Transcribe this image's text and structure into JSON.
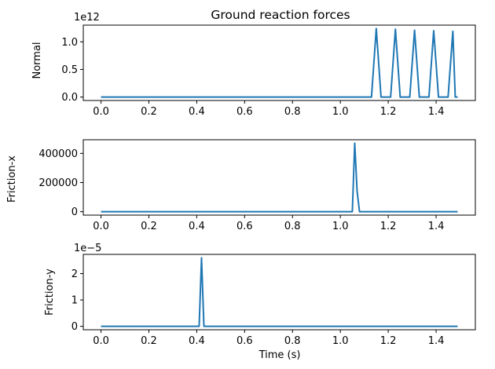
{
  "figure": {
    "title": "Ground reaction forces",
    "xlabel": "Time (s)"
  },
  "colors": {
    "line": "#1f77b4",
    "axes": "#000000",
    "background": "#ffffff"
  },
  "chart_data": [
    {
      "type": "line",
      "title": "Ground reaction forces",
      "xlabel": "",
      "ylabel": "Normal",
      "offset_label": "1e12",
      "xlim": [
        -0.074,
        1.564
      ],
      "ylim": [
        -0.062,
        1.302
      ],
      "xticks": [
        0.0,
        0.2,
        0.4,
        0.6,
        0.8,
        1.0,
        1.2,
        1.4
      ],
      "xtick_labels": [
        "0.0",
        "0.2",
        "0.4",
        "0.6",
        "0.8",
        "1.0",
        "1.2",
        "1.4"
      ],
      "yticks": [
        0.0,
        0.5,
        1.0
      ],
      "ytick_labels": [
        "0.0",
        "0.5",
        "1.0"
      ],
      "grid": false,
      "series": [
        {
          "x": [
            0.0,
            1.13,
            1.15,
            1.17,
            1.21,
            1.23,
            1.25,
            1.29,
            1.31,
            1.33,
            1.37,
            1.39,
            1.41,
            1.45,
            1.47,
            1.48,
            1.49
          ],
          "y": [
            0,
            0,
            1.24,
            0,
            0,
            1.23,
            0,
            0,
            1.21,
            0,
            0,
            1.2,
            0,
            0,
            1.19,
            0,
            0
          ]
        }
      ]
    },
    {
      "type": "line",
      "xlabel": "",
      "ylabel": "Friction-x",
      "xlim": [
        -0.074,
        1.564
      ],
      "ylim": [
        -23500,
        493500
      ],
      "xticks": [
        0.0,
        0.2,
        0.4,
        0.6,
        0.8,
        1.0,
        1.2,
        1.4
      ],
      "xtick_labels": [
        "0.0",
        "0.2",
        "0.4",
        "0.6",
        "0.8",
        "1.0",
        "1.2",
        "1.4"
      ],
      "yticks": [
        0,
        200000,
        400000
      ],
      "ytick_labels": [
        "0",
        "200000",
        "400000"
      ],
      "grid": false,
      "series": [
        {
          "x": [
            0.0,
            1.05,
            1.06,
            1.07,
            1.08,
            1.49
          ],
          "y": [
            0,
            0,
            470000,
            140000,
            0,
            0
          ]
        }
      ]
    },
    {
      "type": "line",
      "xlabel": "Time (s)",
      "ylabel": "Friction-y",
      "offset_label": "1e−5",
      "xlim": [
        -0.074,
        1.564
      ],
      "ylim": [
        -0.13,
        2.73
      ],
      "xticks": [
        0.0,
        0.2,
        0.4,
        0.6,
        0.8,
        1.0,
        1.2,
        1.4
      ],
      "xtick_labels": [
        "0.0",
        "0.2",
        "0.4",
        "0.6",
        "0.8",
        "1.0",
        "1.2",
        "1.4"
      ],
      "yticks": [
        0,
        1,
        2
      ],
      "ytick_labels": [
        "0",
        "1",
        "2"
      ],
      "grid": false,
      "series": [
        {
          "x": [
            0.0,
            0.41,
            0.42,
            0.43,
            1.49
          ],
          "y": [
            0,
            0,
            2.6,
            0,
            0
          ]
        }
      ]
    }
  ]
}
